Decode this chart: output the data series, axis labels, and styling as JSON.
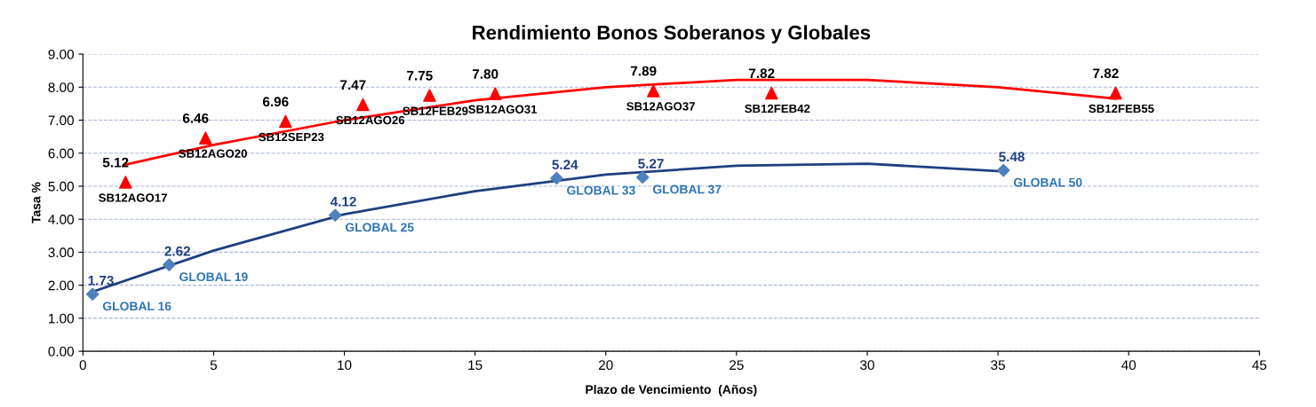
{
  "chart_data": {
    "type": "scatter",
    "title": "Rendimiento Bonos Soberanos y Globales",
    "xlabel": "Plazo de Vencimiento  (Años)",
    "ylabel": "Tasa %",
    "series": [
      {
        "color": "#ff0000",
        "marker": "triangle",
        "x": [
          1.63,
          4.69,
          7.75,
          10.71,
          13.26,
          15.77,
          21.82,
          26.34,
          39.5
        ],
        "values": [
          5.12,
          6.46,
          6.96,
          7.47,
          7.75,
          7.8,
          7.89,
          7.82,
          7.82
        ],
        "value_labels": [
          "5.12",
          "6.46",
          "6.96",
          "7.47",
          "7.75",
          "7.80",
          "7.89",
          "7.82",
          "7.82"
        ]
      },
      {
        "color": "#4f81bd",
        "marker": "diamond",
        "x": [
          0.37,
          3.3,
          9.65,
          18.12,
          21.41,
          35.21
        ],
        "values": [
          1.73,
          2.62,
          4.12,
          5.24,
          5.27,
          5.48
        ],
        "value_labels": [
          "1.73",
          "2.62",
          "4.12",
          "5.24",
          "5.27",
          "5.48"
        ]
      },
      {
        "type": "line",
        "color": "#ff0000",
        "marker": "none",
        "x": [
          1.6,
          5,
          10,
          15,
          20,
          25,
          30,
          35,
          39.5
        ],
        "values": [
          5.65,
          6.25,
          7.0,
          7.6,
          8.0,
          8.22,
          8.22,
          8.0,
          7.65
        ]
      },
      {
        "type": "line",
        "color": "#1f3f7f",
        "marker": "none",
        "x": [
          0.37,
          5,
          10,
          15,
          20,
          25,
          30,
          35.2
        ],
        "values": [
          1.8,
          3.05,
          4.15,
          4.85,
          5.35,
          5.62,
          5.68,
          5.45
        ]
      }
    ],
    "annotations": [
      {
        "text": "SB12AGO17",
        "x": 1.63,
        "y": 5.12
      },
      {
        "text": "SB12AGO20",
        "x": 4.69,
        "y": 6.46
      },
      {
        "text": "SB12SEP23",
        "x": 7.75,
        "y": 6.96
      },
      {
        "text": "SB12AGO26",
        "x": 10.71,
        "y": 7.47
      },
      {
        "text": "SB12FEB29",
        "x": 13.26,
        "y": 7.75
      },
      {
        "text": "SB12AGO31",
        "x": 15.77,
        "y": 7.8
      },
      {
        "text": "SB12AGO37",
        "x": 21.82,
        "y": 7.89
      },
      {
        "text": "SB12FEB42",
        "x": 26.34,
        "y": 7.82
      },
      {
        "text": "SB12FEB55",
        "x": 39.5,
        "y": 7.82
      },
      {
        "text": "GLOBAL 16",
        "x": 0.37,
        "y": 1.73
      },
      {
        "text": "GLOBAL 19",
        "x": 3.3,
        "y": 2.62
      },
      {
        "text": "GLOBAL 25",
        "x": 9.65,
        "y": 4.12
      },
      {
        "text": "GLOBAL 33",
        "x": 18.12,
        "y": 5.24
      },
      {
        "text": "GLOBAL 37",
        "x": 21.41,
        "y": 5.27
      },
      {
        "text": "GLOBAL 50",
        "x": 35.21,
        "y": 5.48
      }
    ],
    "xlim": [
      0,
      45
    ],
    "xticks": [
      0,
      5,
      10,
      15,
      20,
      25,
      30,
      35,
      40,
      45
    ],
    "ylim": [
      0,
      9
    ],
    "yticks": [
      {
        "value": 0,
        "label": "0.00"
      },
      {
        "value": 1,
        "label": "1.00"
      },
      {
        "value": 2,
        "label": "2.00"
      },
      {
        "value": 3,
        "label": "3.00"
      },
      {
        "value": 4,
        "label": "4.00"
      },
      {
        "value": 5,
        "label": "5.00"
      },
      {
        "value": 6,
        "label": "6.00"
      },
      {
        "value": 7,
        "label": "7.00"
      },
      {
        "value": 8,
        "label": "8.00"
      },
      {
        "value": 9,
        "label": "9.00"
      }
    ],
    "grid": "y"
  }
}
